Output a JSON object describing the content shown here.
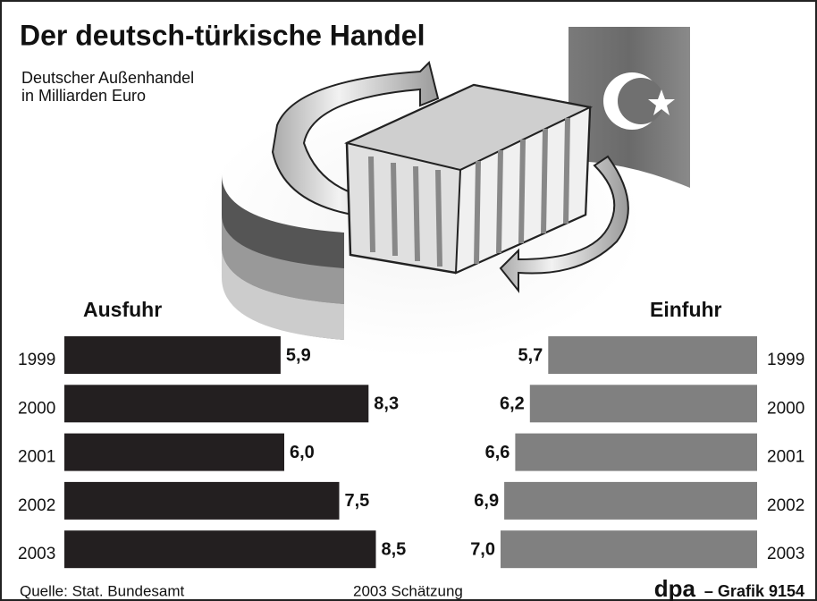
{
  "header": {
    "title": "Der deutsch-türkische Handel",
    "subtitle": [
      "Deutscher Außenhandel",
      "in Milliarden Euro"
    ]
  },
  "chart_data": [
    {
      "type": "bar",
      "title": "Ausfuhr",
      "categories": [
        "1999",
        "2000",
        "2001",
        "2002",
        "2003"
      ],
      "values": [
        5.9,
        8.3,
        6.0,
        7.5,
        8.5
      ],
      "value_labels": [
        "5,9",
        "8,3",
        "6,0",
        "7,5",
        "8,5"
      ],
      "color": "#231f20"
    },
    {
      "type": "bar",
      "title": "Einfuhr",
      "categories": [
        "1999",
        "2000",
        "2001",
        "2002",
        "2003"
      ],
      "values": [
        5.7,
        6.2,
        6.6,
        6.9,
        7.0
      ],
      "value_labels": [
        "5,7",
        "6,2",
        "6,6",
        "6,9",
        "7,0"
      ],
      "color": "#808080"
    }
  ],
  "footer": {
    "source": "Quelle: Stat. Bundesamt",
    "note": "2003 Schätzung",
    "logo": "dpa",
    "credit": "– Grafik 9154"
  }
}
